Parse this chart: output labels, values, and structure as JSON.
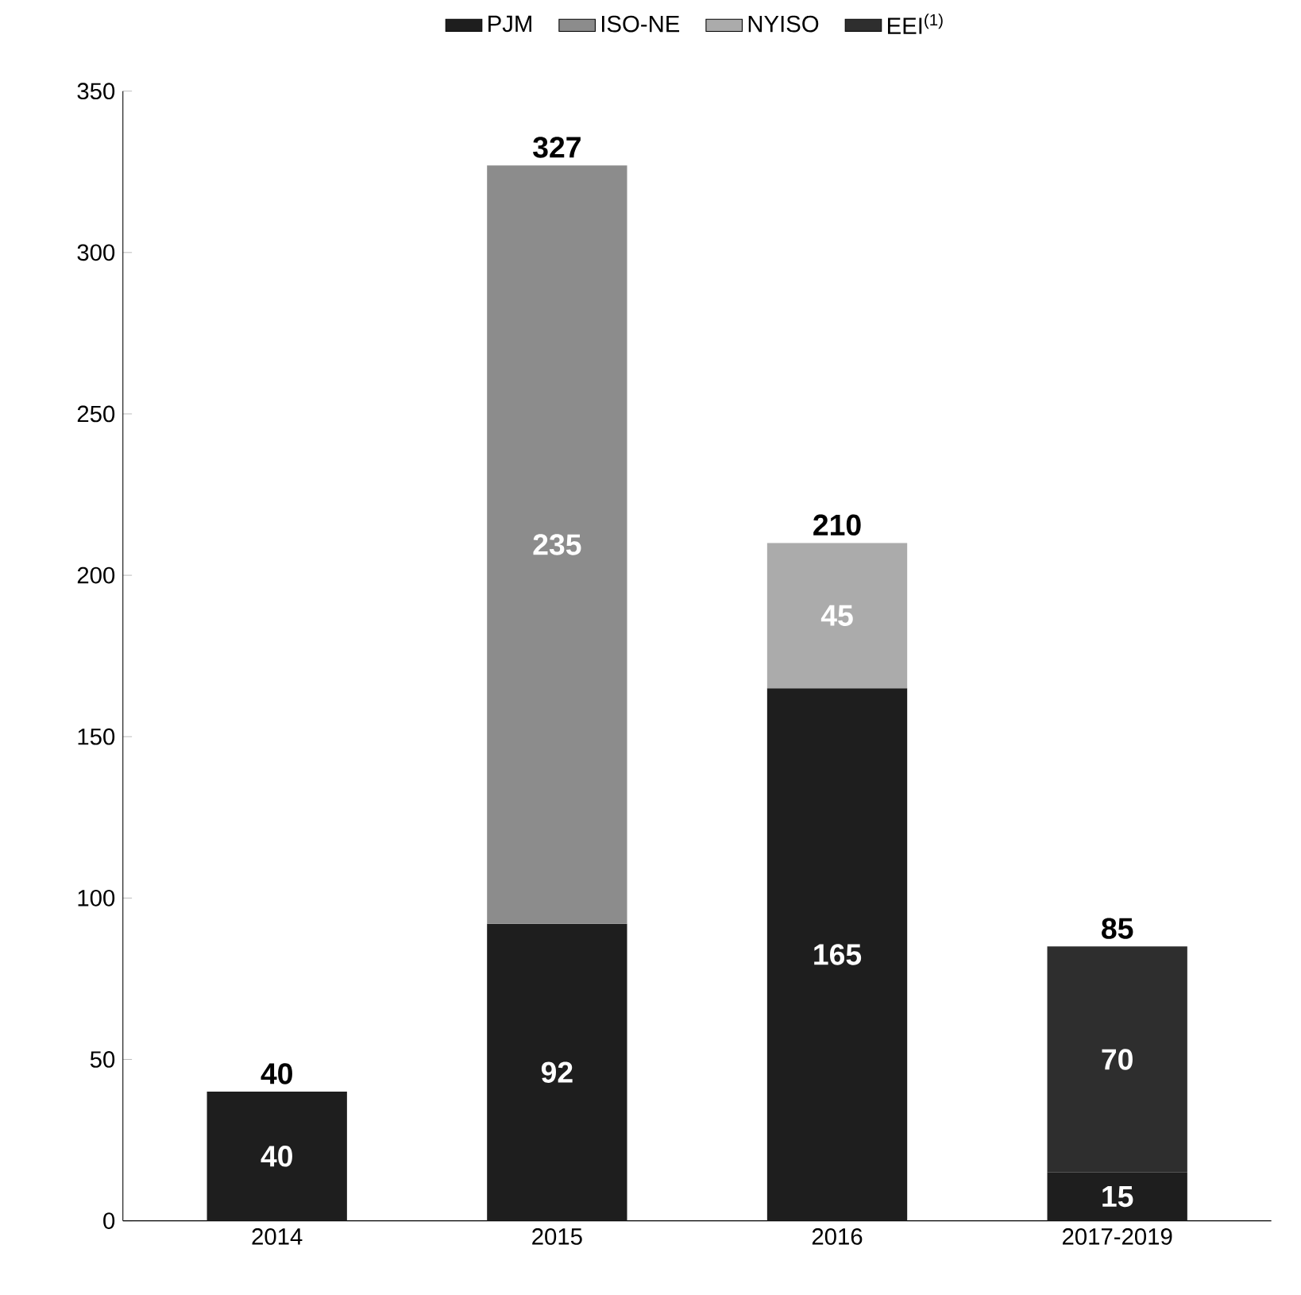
{
  "chart_data": {
    "type": "bar",
    "stacked": true,
    "categories": [
      "2014",
      "2015",
      "2016",
      "2017-2019"
    ],
    "series": [
      {
        "name": "PJM",
        "color": "#1e1e1e",
        "values": [
          40,
          92,
          165,
          15
        ]
      },
      {
        "name": "ISO-NE",
        "color": "#8c8c8c",
        "values": [
          null,
          235,
          null,
          null
        ]
      },
      {
        "name": "NYISO",
        "color": "#ababab",
        "values": [
          null,
          null,
          45,
          null
        ]
      },
      {
        "name": "EEI$^{(1)}$",
        "color": "#2e2e2e",
        "values": [
          null,
          null,
          null,
          70
        ]
      }
    ],
    "ylim": [
      0,
      350
    ],
    "yticks": [
      0,
      50,
      100,
      150,
      200,
      250,
      300,
      350
    ],
    "data_labels": true,
    "totals": [
      "40",
      "327",
      "210",
      "85"
    ],
    "legend": "top",
    "grid": false
  }
}
